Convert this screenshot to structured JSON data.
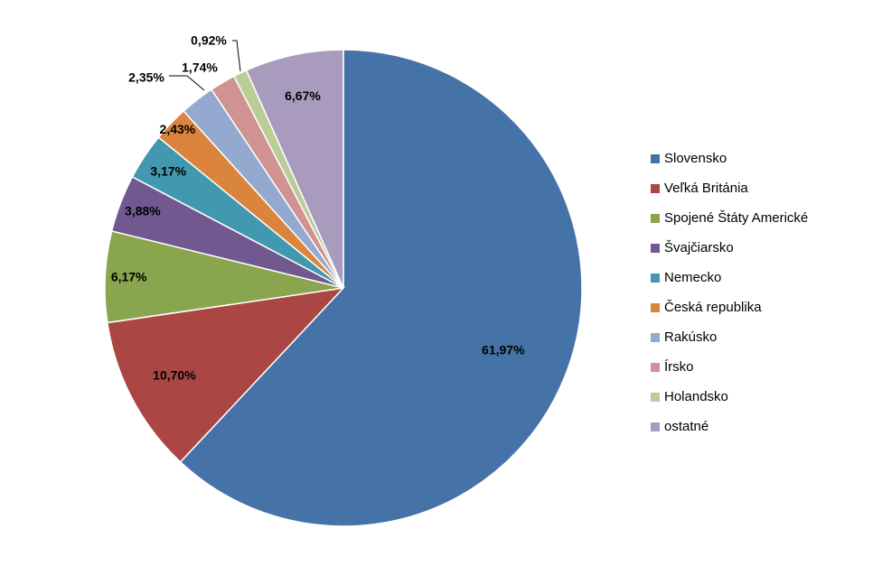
{
  "chart_data": {
    "type": "pie",
    "title": "",
    "slices": [
      {
        "label": "Slovensko",
        "value": 61.97,
        "display": "61,97%",
        "color": "#4572A7"
      },
      {
        "label": "Veľká Británia",
        "value": 10.7,
        "display": "10,70%",
        "color": "#AA4643"
      },
      {
        "label": "Spojené Štáty Americké",
        "value": 6.17,
        "display": "6,17%",
        "color": "#89A54E"
      },
      {
        "label": "Švajčiarsko",
        "value": 3.88,
        "display": "3,88%",
        "color": "#71588F"
      },
      {
        "label": "Nemecko",
        "value": 3.17,
        "display": "3,17%",
        "color": "#4198AF"
      },
      {
        "label": "Česká republika",
        "value": 2.43,
        "display": "2,43%",
        "color": "#DB843D"
      },
      {
        "label": "Rakúsko",
        "value": 2.35,
        "display": "2,35%",
        "color": "#93A9CF"
      },
      {
        "label": "Írsko",
        "value": 1.74,
        "display": "1,74%",
        "color": "#D19392"
      },
      {
        "label": "Holandsko",
        "value": 0.92,
        "display": "0,92%",
        "color": "#B9CD96"
      },
      {
        "label": "ostatné",
        "value": 6.67,
        "display": "6,67%",
        "color": "#A99BBD"
      }
    ],
    "legend_position": "right",
    "start": "12 o'clock",
    "direction": "clockwise"
  }
}
